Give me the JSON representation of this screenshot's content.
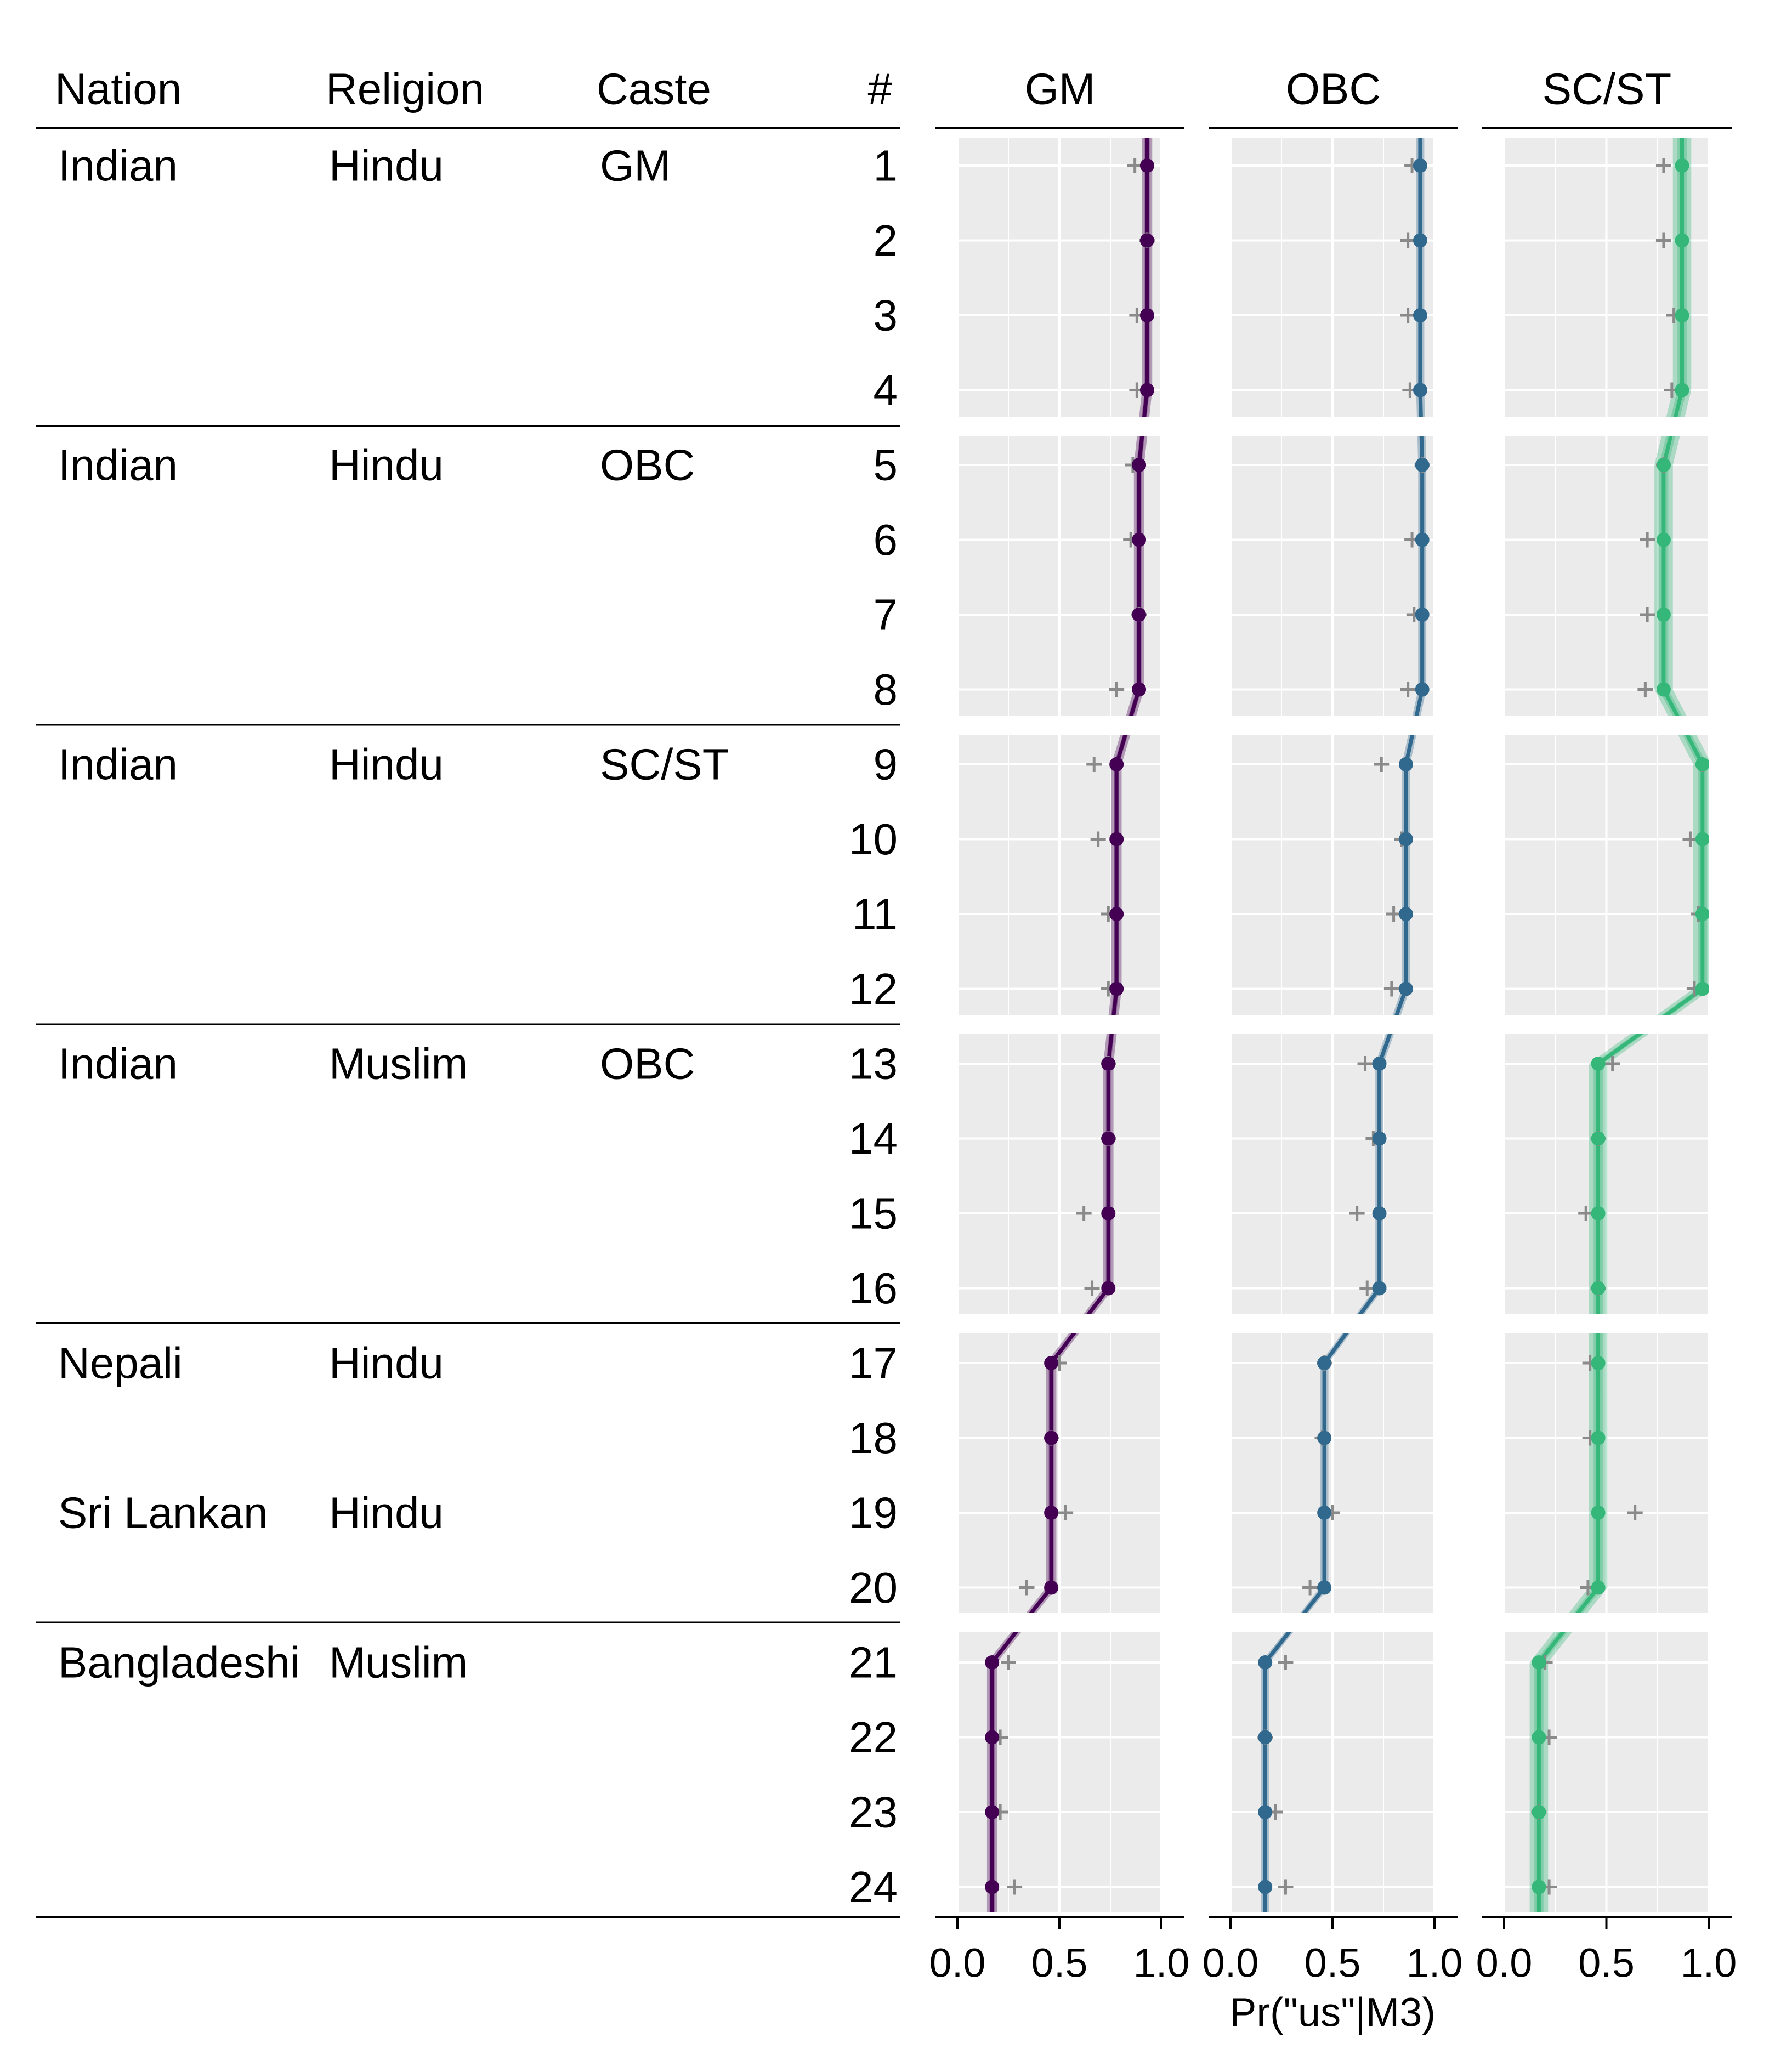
{
  "table": {
    "headers": [
      "Nation",
      "Religion",
      "Caste",
      "#"
    ],
    "groups": [
      {
        "nation": "Indian",
        "religion": "Hindu",
        "caste": "GM",
        "rows": [
          1,
          2,
          3,
          4
        ]
      },
      {
        "nation": "Indian",
        "religion": "Hindu",
        "caste": "OBC",
        "rows": [
          5,
          6,
          7,
          8
        ]
      },
      {
        "nation": "Indian",
        "religion": "Hindu",
        "caste": "SC/ST",
        "rows": [
          9,
          10,
          11,
          12
        ]
      },
      {
        "nation": "Indian",
        "religion": "Muslim",
        "caste": "OBC",
        "rows": [
          13,
          14,
          15,
          16
        ]
      },
      {
        "nation": "Nepali",
        "religion": "Hindu",
        "caste": "",
        "rows": [
          17,
          18
        ],
        "extra": {
          "nation": "Sri Lankan",
          "religion": "Hindu",
          "caste": "",
          "row": 19
        },
        "rows_all": [
          17,
          18,
          19,
          20
        ]
      },
      {
        "nation": "Bangladeshi",
        "religion": "Muslim",
        "caste": "",
        "rows": [
          21,
          22,
          23,
          24
        ]
      }
    ]
  },
  "chart_data": {
    "type": "line",
    "xlabel": "Pr(\"us\"|M3)",
    "xlim": [
      0,
      1
    ],
    "xticks": [
      0.0,
      0.5,
      1.0
    ],
    "xtick_labels": [
      "0.0",
      "0.5",
      "1.0"
    ],
    "y": [
      1,
      2,
      3,
      4,
      5,
      6,
      7,
      8,
      9,
      10,
      11,
      12,
      13,
      14,
      15,
      16,
      17,
      18,
      19,
      20,
      21,
      22,
      23,
      24
    ],
    "grid": true,
    "legend": "none",
    "panels": [
      {
        "title": "GM",
        "color": "#440154",
        "model": [
          0.93,
          0.93,
          0.93,
          0.93,
          0.89,
          0.89,
          0.89,
          0.89,
          0.78,
          0.78,
          0.78,
          0.78,
          0.74,
          0.74,
          0.74,
          0.74,
          0.46,
          0.46,
          0.46,
          0.46,
          0.17,
          0.17,
          0.17,
          0.17
        ],
        "ci_half": 0.025,
        "observed": [
          0.87,
          0.93,
          0.88,
          0.88,
          0.86,
          0.85,
          0.89,
          0.78,
          0.67,
          0.69,
          0.74,
          0.74,
          0.74,
          0.74,
          0.62,
          0.66,
          0.5,
          0.46,
          0.53,
          0.34,
          0.25,
          0.21,
          0.21,
          0.28
        ]
      },
      {
        "title": "OBC",
        "color": "#31688e",
        "model": [
          0.93,
          0.93,
          0.93,
          0.93,
          0.94,
          0.94,
          0.94,
          0.94,
          0.86,
          0.86,
          0.86,
          0.86,
          0.73,
          0.73,
          0.73,
          0.73,
          0.46,
          0.46,
          0.46,
          0.46,
          0.17,
          0.17,
          0.17,
          0.17
        ],
        "ci_half": 0.02,
        "observed": [
          0.89,
          0.87,
          0.87,
          0.88,
          0.94,
          0.89,
          0.9,
          0.87,
          0.74,
          0.84,
          0.8,
          0.79,
          0.66,
          0.7,
          0.62,
          0.67,
          0.46,
          0.45,
          0.5,
          0.39,
          0.27,
          0.17,
          0.22,
          0.27
        ]
      },
      {
        "title": "SC/ST",
        "color": "#35b779",
        "model": [
          0.87,
          0.87,
          0.87,
          0.87,
          0.78,
          0.78,
          0.78,
          0.78,
          0.97,
          0.97,
          0.97,
          0.97,
          0.46,
          0.46,
          0.46,
          0.46,
          0.46,
          0.46,
          0.46,
          0.46,
          0.17,
          0.17,
          0.17,
          0.17
        ],
        "ci_half": 0.045,
        "observed": [
          0.78,
          0.78,
          0.83,
          0.82,
          0.78,
          0.7,
          0.7,
          0.69,
          0.97,
          0.91,
          0.95,
          0.93,
          0.53,
          0.46,
          0.4,
          0.46,
          0.42,
          0.42,
          0.64,
          0.41,
          0.2,
          0.22,
          0.17,
          0.22
        ]
      }
    ]
  }
}
